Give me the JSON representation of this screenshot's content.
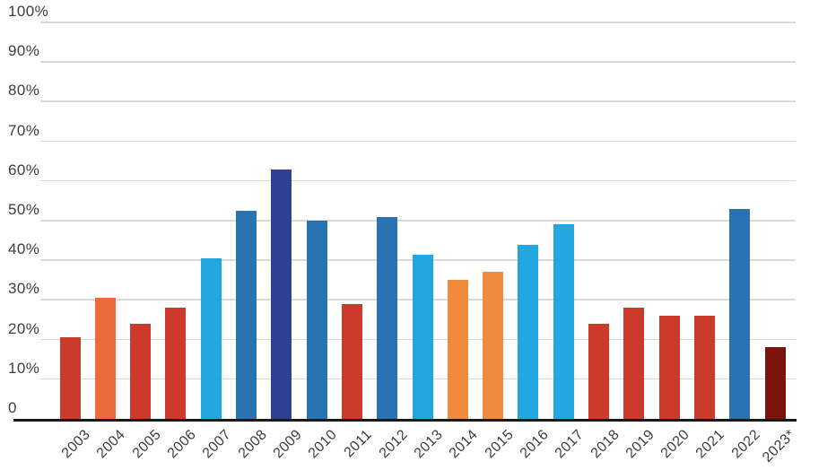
{
  "chart_data": {
    "type": "bar",
    "title": "",
    "xlabel": "",
    "ylabel": "",
    "categories": [
      "2003",
      "2004",
      "2005",
      "2006",
      "2007",
      "2008",
      "2009",
      "2010",
      "2011",
      "2012",
      "2013",
      "2014",
      "2015",
      "2016",
      "2017",
      "2018",
      "2019",
      "2020",
      "2021",
      "2022",
      "2023*"
    ],
    "values": [
      20.5,
      30.5,
      24,
      28,
      40.5,
      52.5,
      63,
      50,
      29,
      51,
      41.5,
      35,
      37,
      44,
      49,
      24,
      28,
      26,
      26,
      53,
      18
    ],
    "bar_colors": [
      "#cb3a2b",
      "#ed6a3c",
      "#cb3a2b",
      "#cb3a2b",
      "#22a7e0",
      "#2a73b3",
      "#2c4192",
      "#2a73b3",
      "#cb3a2b",
      "#2a73b3",
      "#22a7e0",
      "#f08b3e",
      "#f08b3e",
      "#22a7e0",
      "#22a7e0",
      "#cb3a2b",
      "#cb3a2b",
      "#cb3a2b",
      "#cb3a2b",
      "#2a73b3",
      "#7c140d"
    ],
    "ylim": [
      0,
      100
    ],
    "yticks": [
      {
        "value": 100,
        "label": "100%"
      },
      {
        "value": 90,
        "label": "90%"
      },
      {
        "value": 80,
        "label": "80%"
      },
      {
        "value": 70,
        "label": "70%"
      },
      {
        "value": 60,
        "label": "60%"
      },
      {
        "value": 50,
        "label": "50%"
      },
      {
        "value": 40,
        "label": "40%"
      },
      {
        "value": 30,
        "label": "30%"
      },
      {
        "value": 20,
        "label": "20%"
      },
      {
        "value": 10,
        "label": "10%"
      },
      {
        "value": 0,
        "label": "0"
      }
    ],
    "grid": true,
    "legend": false,
    "x_tick_rotation_deg": -45
  },
  "styles": {
    "background_color": "#ffffff",
    "gridline_color": "#d9d9d9",
    "axis_line_color": "#1a1a1a",
    "tick_label_color": "#3d3d3d"
  }
}
